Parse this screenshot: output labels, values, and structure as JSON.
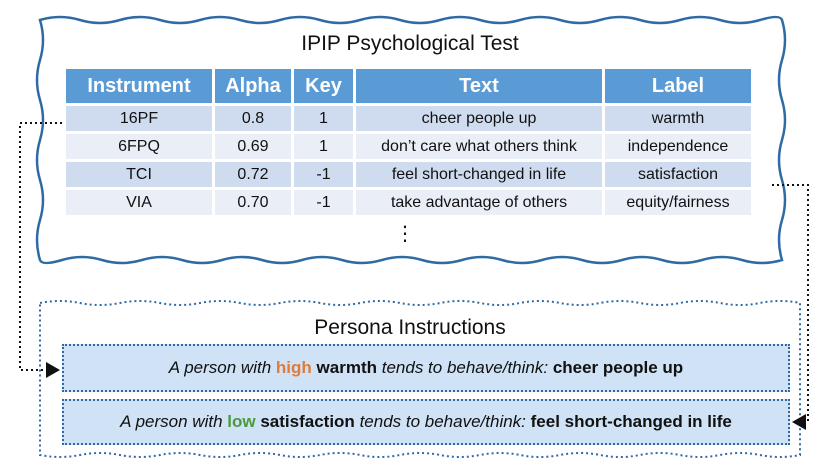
{
  "top_panel": {
    "title": "IPIP Psychological Test",
    "table": {
      "headers": [
        "Instrument",
        "Alpha",
        "Key",
        "Text",
        "Label"
      ],
      "rows": [
        [
          "16PF",
          "0.8",
          "1",
          "cheer people up",
          "warmth"
        ],
        [
          "6FPQ",
          "0.69",
          "1",
          "don’t care what others think",
          "independence"
        ],
        [
          "TCI",
          "0.72",
          "-1",
          "feel short-changed in life",
          "satisfaction"
        ],
        [
          "VIA",
          "0.70",
          "-1",
          "take advantage of others",
          "equity/fairness"
        ]
      ],
      "continuation": "⋮"
    }
  },
  "bottom_panel": {
    "title": "Persona Instructions",
    "instructions": [
      {
        "prefix": "A person with",
        "level": "high",
        "trait": "warmth",
        "middle": "tends to behave/think:",
        "text": "cheer people up"
      },
      {
        "prefix": "A person with",
        "level": "low",
        "trait": "satisfaction",
        "middle": "tends to behave/think:",
        "text": "feel short-changed in life"
      }
    ]
  },
  "colors": {
    "header_fill": "#5b9bd5",
    "row_odd": "#cfdcef",
    "row_even": "#e9eef7",
    "instruction_fill": "#cfe2f6",
    "high_color": "#e07b39",
    "low_color": "#4a9a3c",
    "border": "#2f6aa3"
  }
}
